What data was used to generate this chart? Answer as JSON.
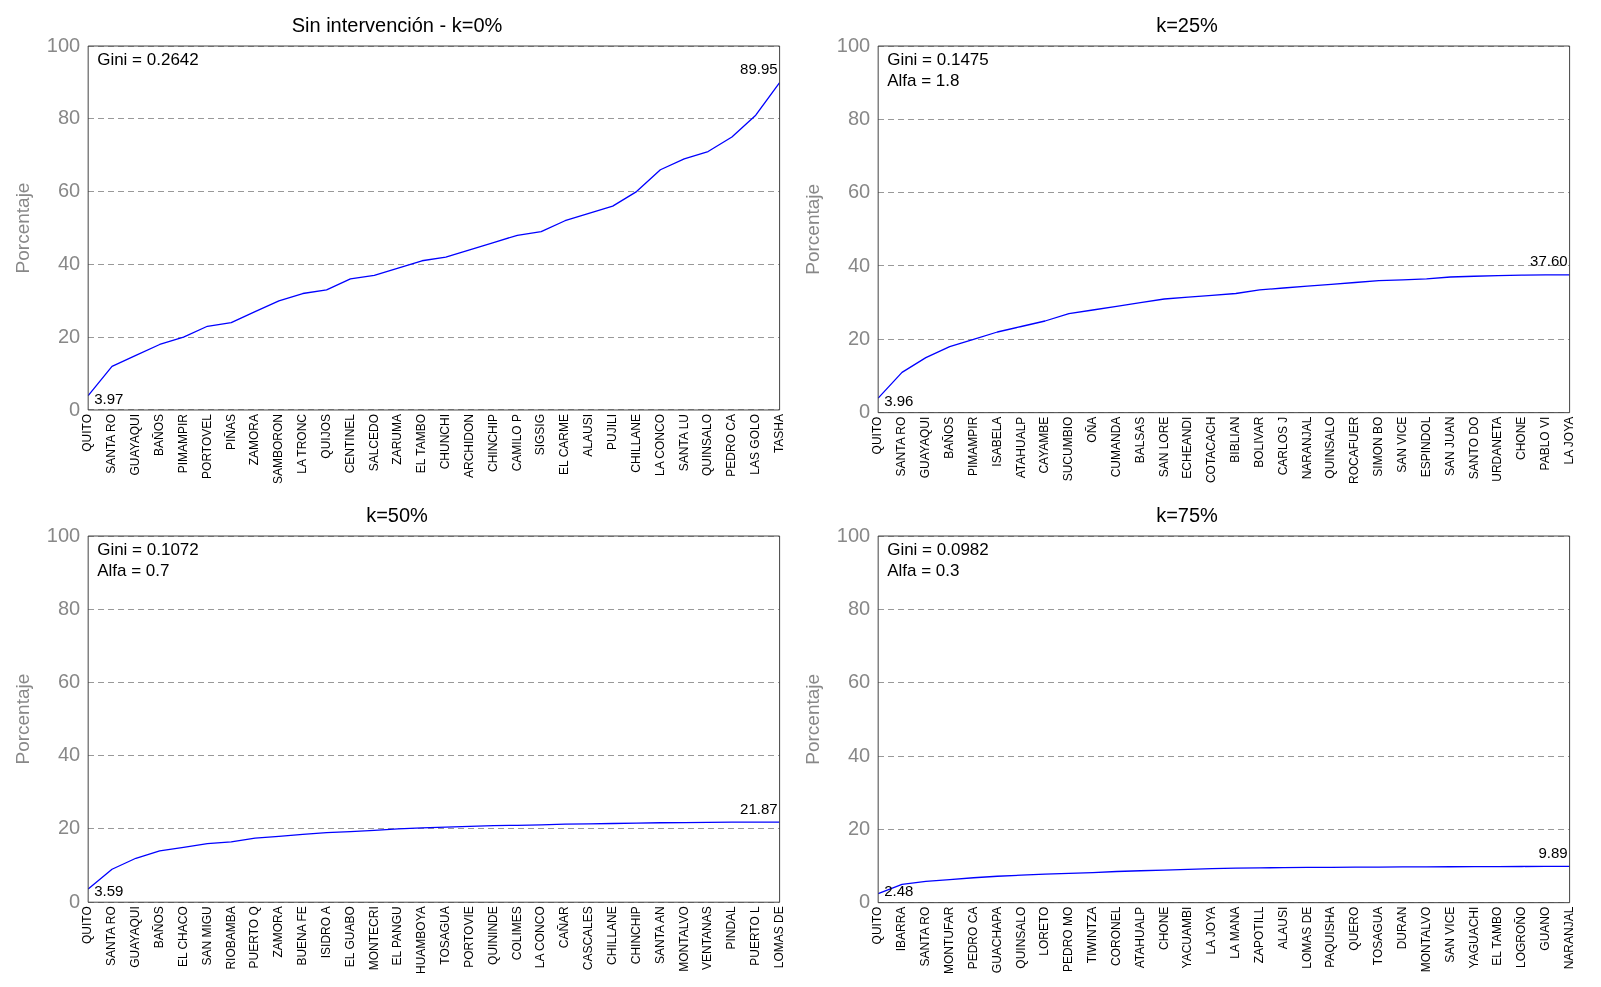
{
  "chart_data": [
    {
      "type": "line",
      "title": "Sin intervención - k=0%",
      "ylabel": "Porcentaje",
      "annotations": [
        "Gini = 0.2642"
      ],
      "ylim": [
        0,
        100
      ],
      "yticks": [
        0,
        20,
        40,
        60,
        80,
        100
      ],
      "grid": "y",
      "legend": false,
      "marker": "none",
      "line_style": "solid",
      "categories": [
        "QUITO",
        "SANTA RO",
        "GUAYAQUI",
        "BAÑOS",
        "PIMAMPIR",
        "PORTOVEL",
        "PIÑAS",
        "ZAMORA",
        "SAMBORON",
        "LA TRONC",
        "QUIJOS",
        "CENTINEL",
        "SALCEDO",
        "ZARUMA",
        "EL TAMBO",
        "CHUNCHI",
        "ARCHIDON",
        "CHINCHIP",
        "CAMILO P",
        "SIGSIG",
        "EL CARME",
        "ALAUSI",
        "PUJILI",
        "CHILLANE",
        "LA CONCO",
        "SANTA LU",
        "QUINSALO",
        "PEDRO CA",
        "LAS GOLO",
        "TASHA"
      ],
      "series": [
        {
          "color": "#0000ff",
          "values": [
            3.97,
            12,
            15,
            18,
            20,
            23,
            24,
            27,
            30,
            32,
            33,
            36,
            37,
            39,
            41,
            42,
            44,
            46,
            48,
            49,
            52,
            54,
            56,
            60,
            66,
            69,
            71,
            75,
            81,
            89.95
          ],
          "value_labels": [
            "3.97",
            null,
            null,
            null,
            null,
            null,
            null,
            null,
            null,
            null,
            null,
            null,
            null,
            null,
            null,
            null,
            null,
            null,
            null,
            null,
            null,
            null,
            null,
            null,
            null,
            null,
            null,
            null,
            null,
            "89.95"
          ]
        }
      ]
    },
    {
      "type": "line",
      "title": "k=25%",
      "ylabel": "Porcentaje",
      "annotations": [
        "Gini = 0.1475",
        "Alfa = 1.8"
      ],
      "ylim": [
        0,
        100
      ],
      "yticks": [
        0,
        20,
        40,
        60,
        80,
        100
      ],
      "grid": "y",
      "legend": false,
      "marker": "none",
      "line_style": "solid",
      "categories": [
        "QUITO",
        "SANTA RO",
        "GUAYAQUI",
        "BAÑOS",
        "PIMAMPIR",
        "ISABELA",
        "ATAHUALP",
        "CAYAMBE",
        "SUCUMBIO",
        "OÑA",
        "CUMANDA",
        "BALSAS",
        "SAN LORE",
        "ECHEANDI",
        "COTACACH",
        "BIBLIAN",
        "BOLIVAR",
        "CARLOS J",
        "NARANJAL",
        "QUINSALO",
        "ROCAFUER",
        "SIMON BO",
        "SAN VICE",
        "ESPINDOL",
        "SAN JUAN",
        "SANTO DO",
        "URDANETA",
        "CHONE",
        "PABLO VI",
        "LA JOYA"
      ],
      "series": [
        {
          "color": "#0000ff",
          "values": [
            3.96,
            11,
            15,
            18,
            20,
            22,
            23.5,
            25,
            27,
            28,
            29,
            30,
            31,
            31.5,
            32,
            32.5,
            33.5,
            34,
            34.5,
            35,
            35.5,
            36,
            36.2,
            36.5,
            37,
            37.2,
            37.4,
            37.5,
            37.6,
            37.6
          ],
          "value_labels": [
            "3.96",
            null,
            null,
            null,
            null,
            null,
            null,
            null,
            null,
            null,
            null,
            null,
            null,
            null,
            null,
            null,
            null,
            null,
            null,
            null,
            null,
            null,
            null,
            null,
            null,
            null,
            null,
            null,
            null,
            "37.60"
          ]
        }
      ]
    },
    {
      "type": "line",
      "title": "k=50%",
      "ylabel": "Porcentaje",
      "annotations": [
        "Gini = 0.1072",
        "Alfa = 0.7"
      ],
      "ylim": [
        0,
        100
      ],
      "yticks": [
        0,
        20,
        40,
        60,
        80,
        100
      ],
      "grid": "y",
      "legend": false,
      "marker": "none",
      "line_style": "solid",
      "categories": [
        "QUITO",
        "SANTA RO",
        "GUAYAQUI",
        "BAÑOS",
        "EL CHACO",
        "SAN MIGU",
        "RIOBAMBA",
        "PUERTO Q",
        "ZAMORA",
        "BUENA FE",
        "ISIDRO A",
        "EL GUABO",
        "MONTECRI",
        "EL PANGU",
        "HUAMBOYA",
        "TOSAGUA",
        "PORTOVIE",
        "QUININDE",
        "COLIMES",
        "LA CONCO",
        "CAÑAR",
        "CASCALES",
        "CHILLANE",
        "CHINCHIP",
        "SANTA AN",
        "MONTALVO",
        "VENTANAS",
        "PINDAL",
        "PUERTO L",
        "LOMAS DE"
      ],
      "series": [
        {
          "color": "#0000ff",
          "values": [
            3.59,
            9,
            12,
            14,
            15,
            16,
            16.5,
            17.5,
            18,
            18.5,
            19,
            19.3,
            19.6,
            20,
            20.3,
            20.5,
            20.7,
            20.9,
            21,
            21.1,
            21.3,
            21.4,
            21.5,
            21.6,
            21.7,
            21.75,
            21.8,
            21.85,
            21.87,
            21.87
          ],
          "value_labels": [
            "3.59",
            null,
            null,
            null,
            null,
            null,
            null,
            null,
            null,
            null,
            null,
            null,
            null,
            null,
            null,
            null,
            null,
            null,
            null,
            null,
            null,
            null,
            null,
            null,
            null,
            null,
            null,
            null,
            null,
            "21.87"
          ]
        }
      ]
    },
    {
      "type": "line",
      "title": "k=75%",
      "ylabel": "Porcentaje",
      "annotations": [
        "Gini = 0.0982",
        "Alfa = 0.3"
      ],
      "ylim": [
        0,
        100
      ],
      "yticks": [
        0,
        20,
        40,
        60,
        80,
        100
      ],
      "grid": "y",
      "legend": false,
      "marker": "none",
      "line_style": "solid",
      "categories": [
        "QUITO",
        "IBARRA",
        "SANTA RO",
        "MONTUFAR",
        "PEDRO CA",
        "GUACHAPA",
        "QUINSALO",
        "LORETO",
        "PEDRO MO",
        "TIWINTZA",
        "CORONEL",
        "ATAHUALP",
        "CHONE",
        "YACUAMBI",
        "LA JOYA",
        "LA MANA",
        "ZAPOTILL",
        "ALAUSI",
        "LOMAS DE",
        "PAQUISHA",
        "QUERO",
        "TOSAGUA",
        "DURAN",
        "MONTALVO",
        "SAN VICE",
        "YAGUACHI",
        "EL TAMBO",
        "LOGROÑO",
        "GUANO",
        "NARANJAL"
      ],
      "series": [
        {
          "color": "#0000ff",
          "values": [
            2.48,
            5,
            5.8,
            6.3,
            6.8,
            7.2,
            7.5,
            7.8,
            8,
            8.2,
            8.5,
            8.7,
            8.9,
            9.1,
            9.3,
            9.4,
            9.5,
            9.55,
            9.6,
            9.65,
            9.7,
            9.72,
            9.75,
            9.78,
            9.8,
            9.83,
            9.85,
            9.87,
            9.88,
            9.89
          ],
          "value_labels": [
            "2.48",
            null,
            null,
            null,
            null,
            null,
            null,
            null,
            null,
            null,
            null,
            null,
            null,
            null,
            null,
            null,
            null,
            null,
            null,
            null,
            null,
            null,
            null,
            null,
            null,
            null,
            null,
            null,
            null,
            "9.89"
          ]
        }
      ]
    }
  ]
}
